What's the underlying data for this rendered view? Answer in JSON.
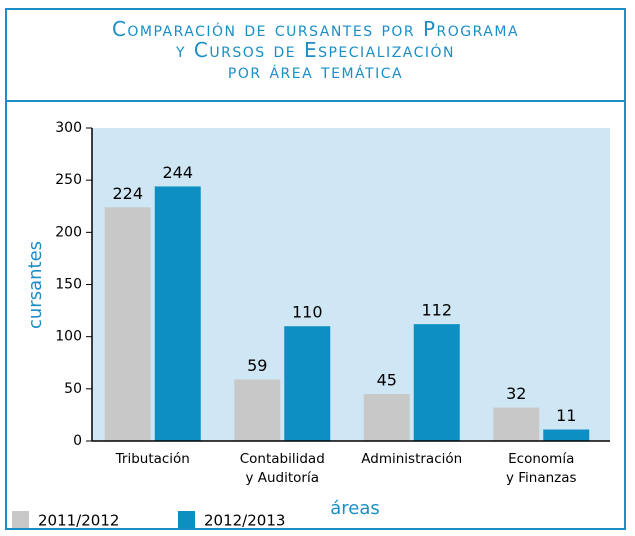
{
  "chart_data": {
    "type": "bar",
    "title": [
      "Comparación de cursantes por Programa",
      "y Cursos de Especialización",
      "por área temática"
    ],
    "x_label": "áreas",
    "y_label": "cursantes",
    "categories": [
      "Tributación",
      "Contabilidad\ny Auditoría",
      "Administración",
      "Economía\ny Finanzas"
    ],
    "series": [
      {
        "name": "2011/2012",
        "color": "#c8c8c8",
        "values": [
          224,
          59,
          45,
          32
        ]
      },
      {
        "name": "2012/2013",
        "color": "#0e8fc4",
        "values": [
          244,
          110,
          112,
          11
        ]
      }
    ],
    "ylim": [
      0,
      300
    ],
    "yticks": [
      0,
      50,
      100,
      150,
      200,
      250,
      300
    ],
    "plot_background": "#cfe7f4",
    "legend": "bottom-left"
  }
}
